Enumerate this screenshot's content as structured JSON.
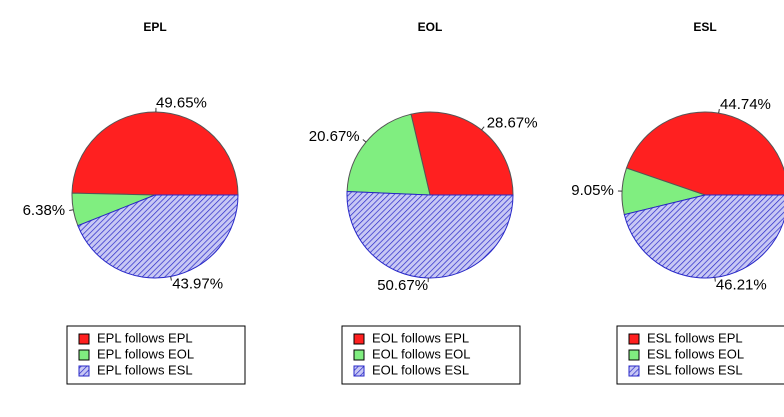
{
  "chart_data": [
    {
      "type": "pie",
      "title": "EPL",
      "categories": [
        "EPL follows EPL",
        "EPL follows EOL",
        "EPL follows ESL"
      ],
      "values": [
        49.65,
        6.38,
        43.97
      ],
      "value_labels": [
        "49.65%",
        "6.38%",
        "43.97%"
      ],
      "colors": [
        "#ff2020",
        "#80ee80",
        "#2828c8"
      ],
      "hatch": [
        false,
        false,
        true
      ]
    },
    {
      "type": "pie",
      "title": "EOL",
      "categories": [
        "EOL follows EPL",
        "EOL follows EOL",
        "EOL follows ESL"
      ],
      "values": [
        28.67,
        20.67,
        50.67
      ],
      "value_labels": [
        "28.67%",
        "20.67%",
        "50.67%"
      ],
      "colors": [
        "#ff2020",
        "#80ee80",
        "#2828c8"
      ],
      "hatch": [
        false,
        false,
        true
      ]
    },
    {
      "type": "pie",
      "title": "ESL",
      "categories": [
        "ESL follows EPL",
        "ESL follows EOL",
        "ESL follows ESL"
      ],
      "values": [
        44.74,
        9.05,
        46.21
      ],
      "value_labels": [
        "44.74%",
        "9.05%",
        "46.21%"
      ],
      "colors": [
        "#ff2020",
        "#80ee80",
        "#2828c8"
      ],
      "hatch": [
        false,
        false,
        true
      ]
    }
  ]
}
